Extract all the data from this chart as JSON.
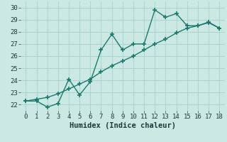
{
  "line1_x": [
    0,
    1,
    2,
    3,
    4,
    5,
    6,
    7,
    8,
    9,
    10,
    11,
    12,
    13,
    14,
    15,
    16,
    17,
    18
  ],
  "line1_y": [
    22.3,
    22.3,
    21.8,
    22.1,
    24.1,
    22.8,
    23.9,
    26.5,
    27.8,
    26.5,
    27.0,
    27.0,
    29.8,
    29.2,
    29.5,
    28.5,
    28.5,
    28.8,
    28.3
  ],
  "line2_x": [
    0,
    1,
    2,
    3,
    4,
    5,
    6,
    7,
    8,
    9,
    10,
    11,
    12,
    13,
    14,
    15,
    16,
    17,
    18
  ],
  "line2_y": [
    22.3,
    22.45,
    22.6,
    22.9,
    23.3,
    23.7,
    24.1,
    24.7,
    25.2,
    25.6,
    26.0,
    26.5,
    27.0,
    27.4,
    27.9,
    28.3,
    28.5,
    28.75,
    28.3
  ],
  "line_color": "#1a7a6e",
  "background_color": "#cce8e3",
  "grid_color": "#aad4ce",
  "xlabel": "Humidex (Indice chaleur)",
  "xlim": [
    -0.5,
    18.5
  ],
  "ylim": [
    21.5,
    30.5
  ],
  "xticks": [
    0,
    1,
    2,
    3,
    4,
    5,
    6,
    7,
    8,
    9,
    10,
    11,
    12,
    13,
    14,
    15,
    16,
    17,
    18
  ],
  "yticks": [
    22,
    23,
    24,
    25,
    26,
    27,
    28,
    29,
    30
  ],
  "marker": "+",
  "markersize": 5,
  "linewidth": 1.0,
  "font_size": 7.5,
  "tick_font_size": 6.5
}
